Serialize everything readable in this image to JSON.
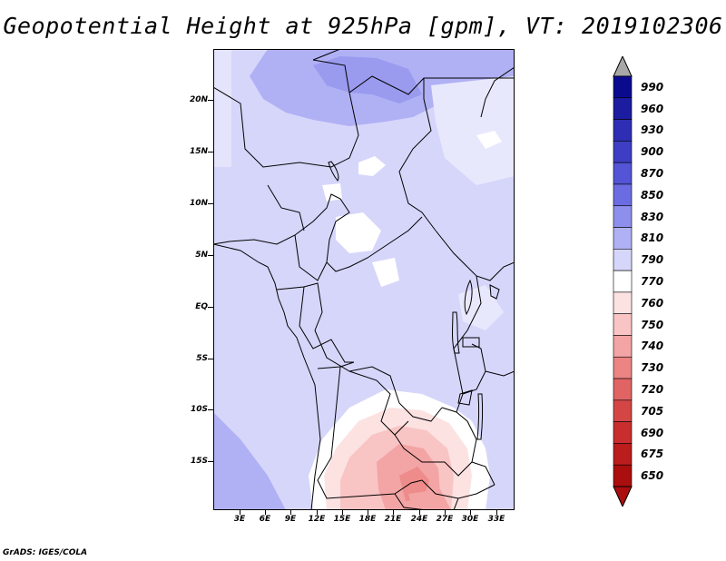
{
  "title": "Geopotential Height at 925hPa [gpm], VT: 2019102306",
  "footer": "GrADS: IGES/COLA",
  "map": {
    "lat_range": [
      -19.5,
      24.5
    ],
    "lon_range": [
      0,
      35
    ],
    "y_axis_labels": [
      "20N",
      "15N",
      "10N",
      "5N",
      "EQ",
      "5S",
      "10S",
      "15S"
    ],
    "x_axis_labels": [
      "3E",
      "6E",
      "9E",
      "12E",
      "15E",
      "18E",
      "21E",
      "24E",
      "27E",
      "30E",
      "33E"
    ],
    "region": "Central and Southern-Central Africa",
    "lowest_heights_region": "Zambia / Angola border (~730-740 gpm)",
    "highest_heights_region": "Southern Libya / Chad border (~830 gpm)"
  },
  "legend": {
    "labels": [
      "990",
      "960",
      "930",
      "900",
      "870",
      "850",
      "830",
      "810",
      "790",
      "770",
      "760",
      "750",
      "740",
      "730",
      "720",
      "705",
      "690",
      "675",
      "650"
    ],
    "colors": [
      "#0a0a8e",
      "#1c1ca0",
      "#2e2eb4",
      "#3e3ec4",
      "#5454d6",
      "#6c6ce2",
      "#8e8eec",
      "#b0b0f5",
      "#d6d6fb",
      "#ffffff",
      "#fde2e2",
      "#f9c4c4",
      "#f3a4a4",
      "#ec8484",
      "#e06464",
      "#d44646",
      "#c82e2e",
      "#bb1c1c",
      "#aa0e0e"
    ],
    "over_color": "#a8a8a8"
  },
  "colors": {
    "ocean": "#d6d6fb",
    "land_base": "#d6d6fb",
    "high_tint": "#b0b0f5",
    "higher_tint": "#9a9aef",
    "neutral": "#ffffff",
    "low_light": "#fde2e2",
    "low_mid": "#f9c4c4",
    "low_deep": "#f3a4a4",
    "lowest": "#ec8484"
  }
}
